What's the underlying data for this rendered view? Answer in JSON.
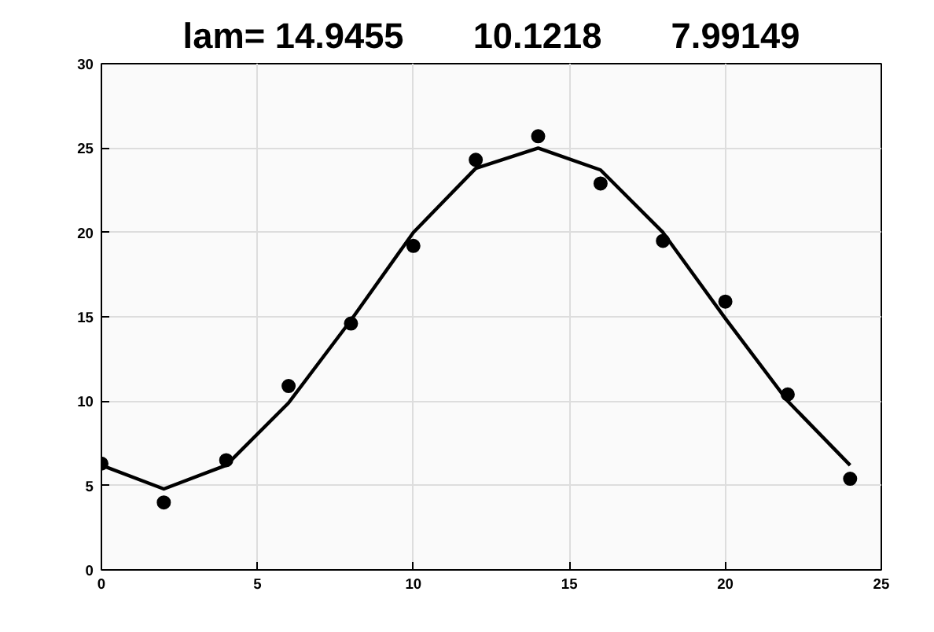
{
  "chart_data": {
    "type": "scatter",
    "title": "lam= 14.9455       10.1218       7.99149",
    "x": [
      0,
      2,
      4,
      6,
      8,
      10,
      12,
      14,
      16,
      18,
      20,
      22,
      24
    ],
    "series": [
      {
        "color": "#000000",
        "marker": "circle",
        "values": [
          6.3,
          4.0,
          6.5,
          10.9,
          14.6,
          19.2,
          24.3,
          25.7,
          22.9,
          19.5,
          15.9,
          10.4,
          5.4
        ]
      },
      {
        "type": "line",
        "color": "#000000",
        "line_style": "solid",
        "values": [
          6.2,
          4.8,
          6.2,
          9.9,
          14.8,
          20.0,
          23.8,
          25.0,
          23.7,
          20.0,
          14.9,
          10.0,
          6.2
        ]
      }
    ],
    "xlim": [
      0,
      25
    ],
    "ylim": [
      0,
      30
    ],
    "xticks": [
      0,
      5,
      10,
      15,
      20,
      25
    ],
    "yticks": [
      0,
      5,
      10,
      15,
      20,
      25,
      30
    ],
    "grid": true
  }
}
